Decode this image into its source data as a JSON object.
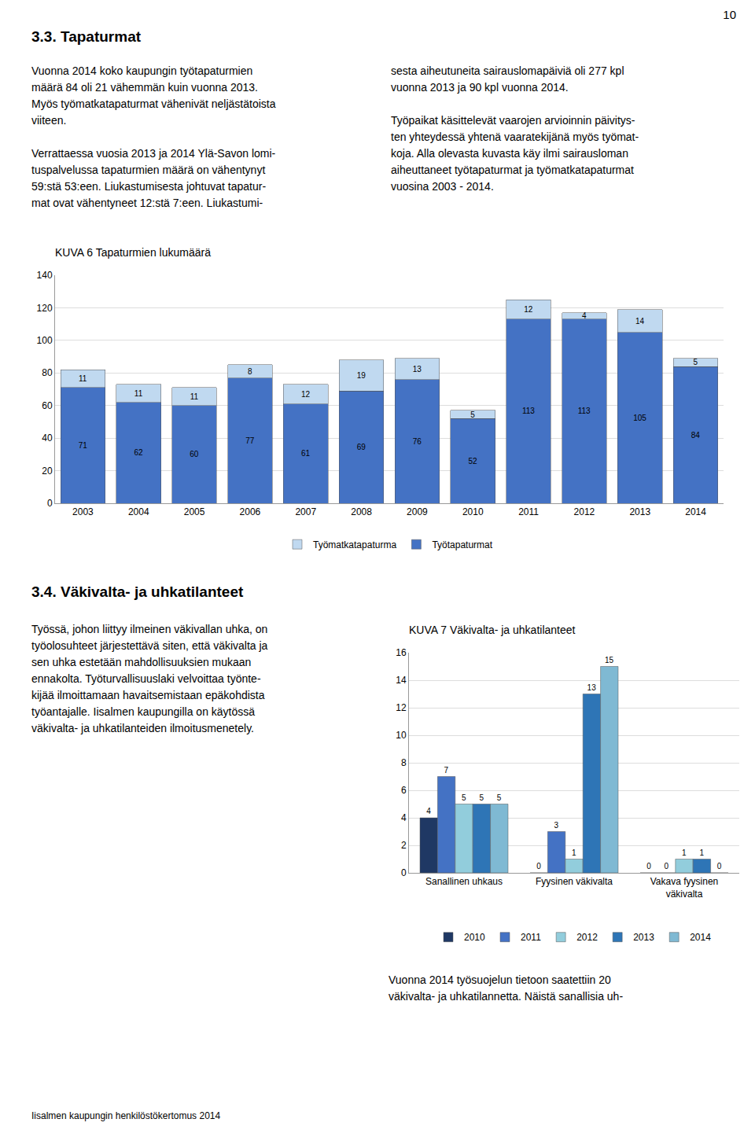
{
  "chart_data": [
    {
      "type": "bar",
      "stacked": true,
      "title": "KUVA 6 Tapaturmien lukumäärä",
      "categories": [
        2003,
        2004,
        2005,
        2006,
        2007,
        2008,
        2009,
        2010,
        2011,
        2012,
        2013,
        2014
      ],
      "series": [
        {
          "name": "Työtapaturmat",
          "color": "#4472C4",
          "values": [
            71,
            62,
            60,
            77,
            61,
            69,
            76,
            52,
            113,
            113,
            105,
            84
          ]
        },
        {
          "name": "Työmatkatapaturma",
          "color": "#C0D9F0",
          "values": [
            11,
            11,
            11,
            8,
            12,
            19,
            13,
            5,
            12,
            4,
            14,
            5
          ]
        }
      ],
      "ylim": [
        0,
        140
      ],
      "yticks": [
        0,
        20,
        40,
        60,
        80,
        100,
        120,
        140
      ],
      "grid": true,
      "legend": "bottom",
      "data_labels": true,
      "annotations": [
        [
          "10"
        ],
        [
          "3.3. Tapaturmat"
        ],
        [
          "Vuonna 2014 koko kaupungin työtapaturmien",
          "määrä 84 oli 21 vähemmän kuin vuonna 2013.",
          "Myös työmatkatapaturmat vähenivät neljästätoista",
          "viiteen."
        ],
        [
          "Verrattaessa vuosia 2013 ja 2014 Ylä-Savon lomi-",
          "tuspalvelussa tapaturmien määrä on vähentynyt",
          "59:stä 53:een. Liukastumisesta johtuvat tapatur-",
          "mat ovat vähentyneet 12:stä 7:een. Liukastumi-",
          "sesta aiheutuneita sairauslomapäiviä oli 277 kpl",
          "vuonna 2013 ja 90 kpl vuonna 2014."
        ],
        [
          "Työpaikat käsittelevät vaarojen arvioinnin päivitys-",
          "ten yhteydessä yhtenä vaaratekijänä myös työmat-",
          "koja. Alla olevasta kuvasta käy ilmi sairausloman",
          "aiheuttaneet työtapaturmat ja työmatkatapaturmat",
          "vuosina 2003 - 2014."
        ]
      ]
    },
    {
      "type": "bar",
      "title": "KUVA 7 Väkivalta- ja uhkatilanteet",
      "categories": [
        "Sanallinen uhkaus",
        "Fyysinen väkivalta",
        "Vakava fyysinen\nväkivalta"
      ],
      "series": [
        {
          "name": "2010",
          "color": "#1F3864",
          "values": [
            4,
            0,
            0
          ]
        },
        {
          "name": "2011",
          "color": "#4472C4",
          "values": [
            7,
            3,
            0
          ]
        },
        {
          "name": "2012",
          "color": "#92CDDC",
          "values": [
            5,
            1,
            1
          ]
        },
        {
          "name": "2013",
          "color": "#2E75B6",
          "values": [
            5,
            13,
            1
          ]
        },
        {
          "name": "2014",
          "color": "#7FB9D3",
          "values": [
            5,
            15,
            0
          ]
        }
      ],
      "ylim": [
        0,
        16
      ],
      "yticks": [
        0,
        2,
        4,
        6,
        8,
        10,
        12,
        14,
        16
      ],
      "grid": true,
      "legend": "bottom",
      "data_labels": true,
      "annotations": [
        [
          "3.4. Väkivalta- ja uhkatilanteet"
        ],
        [
          "Työssä, johon liittyy ilmeinen väkivallan uhka, on",
          "työolosuhteet järjestettävä siten, että väkivalta ja",
          "sen uhka estetään mahdollisuuksien mukaan",
          "ennakolta. Työturvallisuuslaki velvoittaa työnte-",
          "kijää ilmoittamaan havaitsemistaan epäkohdista",
          "työantajalle. Iisalmen kaupungilla on käytössä",
          "väkivalta- ja uhkatilanteiden ilmoitusmenetely."
        ],
        [
          "Vuonna 2014 työsuojelun tietoon saatettiin 20",
          "väkivalta- ja uhkatilannetta. Näistä sanallisia uh-"
        ],
        [
          "Iisalmen kaupungin henkilöstökertomus 2014"
        ]
      ]
    }
  ]
}
